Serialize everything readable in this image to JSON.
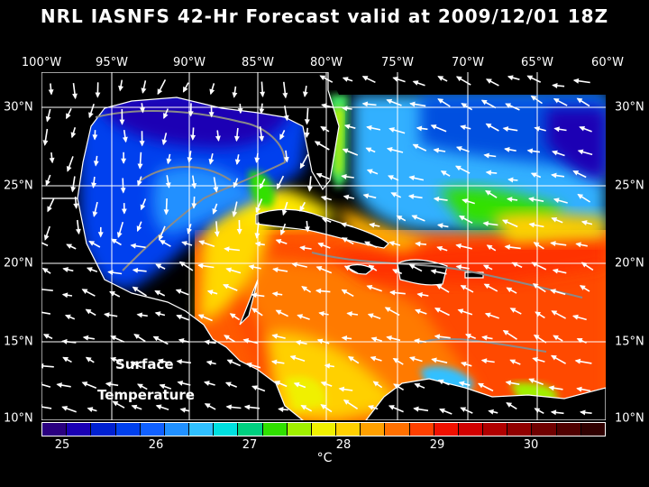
{
  "title": "NRL IASNFS  42-Hr Forecast valid at 2009/12/01 18Z",
  "longitude_labels": [
    "100°W",
    "95°W",
    "90°W",
    "85°W",
    "80°W",
    "75°W",
    "70°W",
    "65°W",
    "60°W"
  ],
  "latitude_labels": [
    "30°N",
    "25°N",
    "20°N",
    "15°N",
    "10°N"
  ],
  "overlay_text": {
    "line1": "Surface",
    "line2": "Temperature"
  },
  "colorbar": {
    "tick_labels": [
      "25",
      "26",
      "27",
      "28",
      "29",
      "30"
    ],
    "units": "°C",
    "colors": [
      "#2a0080",
      "#1a00b4",
      "#0020d0",
      "#0040ee",
      "#1060ff",
      "#2090ff",
      "#30c0ff",
      "#00e0e0",
      "#00d080",
      "#30e000",
      "#a0f000",
      "#f0f000",
      "#ffd000",
      "#ffa000",
      "#ff7000",
      "#ff4000",
      "#f01000",
      "#d00000",
      "#b00000",
      "#900000",
      "#700000",
      "#500000",
      "#300000"
    ]
  },
  "grid_color": "#ffffff",
  "land_color": "#000000"
}
